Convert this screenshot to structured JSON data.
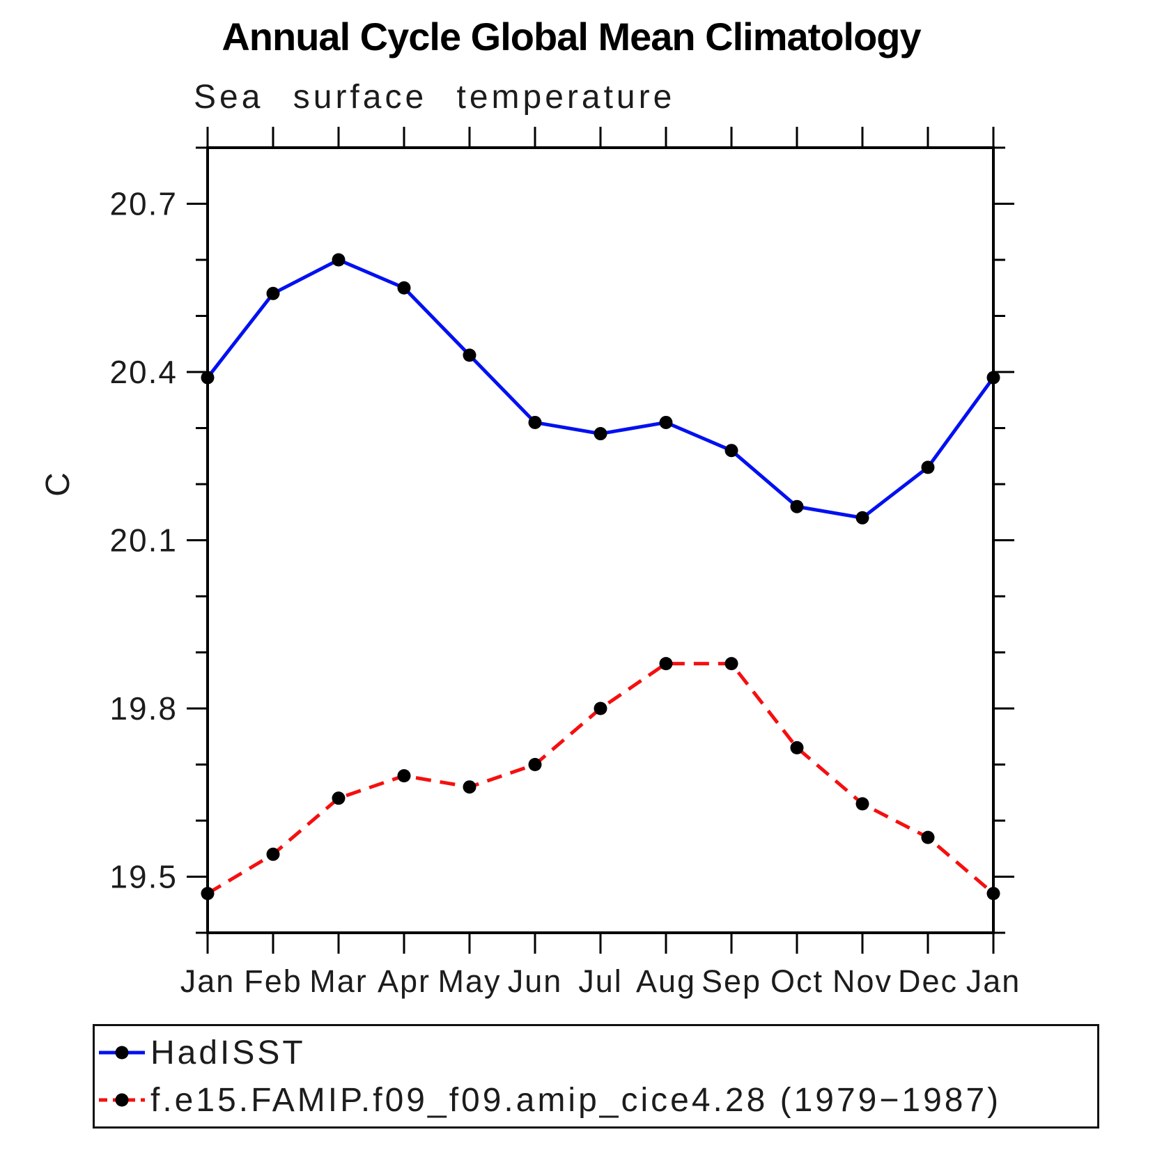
{
  "chart_data": {
    "type": "line",
    "title": "Annual Cycle Global Mean Climatology",
    "subtitle": "Sea surface temperature",
    "xlabel": "",
    "ylabel": "C",
    "categories": [
      "Jan",
      "Feb",
      "Mar",
      "Apr",
      "May",
      "Jun",
      "Jul",
      "Aug",
      "Sep",
      "Oct",
      "Nov",
      "Dec",
      "Jan"
    ],
    "series": [
      {
        "name": "HadISST",
        "color": "#0010f0",
        "line_style": "solid",
        "marker": "filled-circle",
        "marker_color": "#000000",
        "values": [
          20.39,
          20.54,
          20.6,
          20.55,
          20.43,
          20.31,
          20.29,
          20.31,
          20.26,
          20.16,
          20.14,
          20.23,
          20.39
        ]
      },
      {
        "name": "f.e15.FAMIP.f09_f09.amip_cice4.28 (1979−1987)",
        "color": "#f50f0f",
        "line_style": "dashed",
        "marker": "filled-circle",
        "marker_color": "#000000",
        "values": [
          19.47,
          19.54,
          19.64,
          19.68,
          19.66,
          19.7,
          19.8,
          19.88,
          19.88,
          19.73,
          19.63,
          19.57,
          19.47
        ]
      }
    ],
    "ylim": [
      19.4,
      20.8
    ],
    "yticks_major": [
      19.5,
      19.8,
      20.1,
      20.4,
      20.7
    ],
    "ytick_labels": [
      "19.5",
      "19.8",
      "20.1",
      "20.4",
      "20.7"
    ],
    "ytick_minor_step": 0.1,
    "grid": false,
    "legend_position": "bottom-left-box",
    "axis_color": "#000000"
  }
}
